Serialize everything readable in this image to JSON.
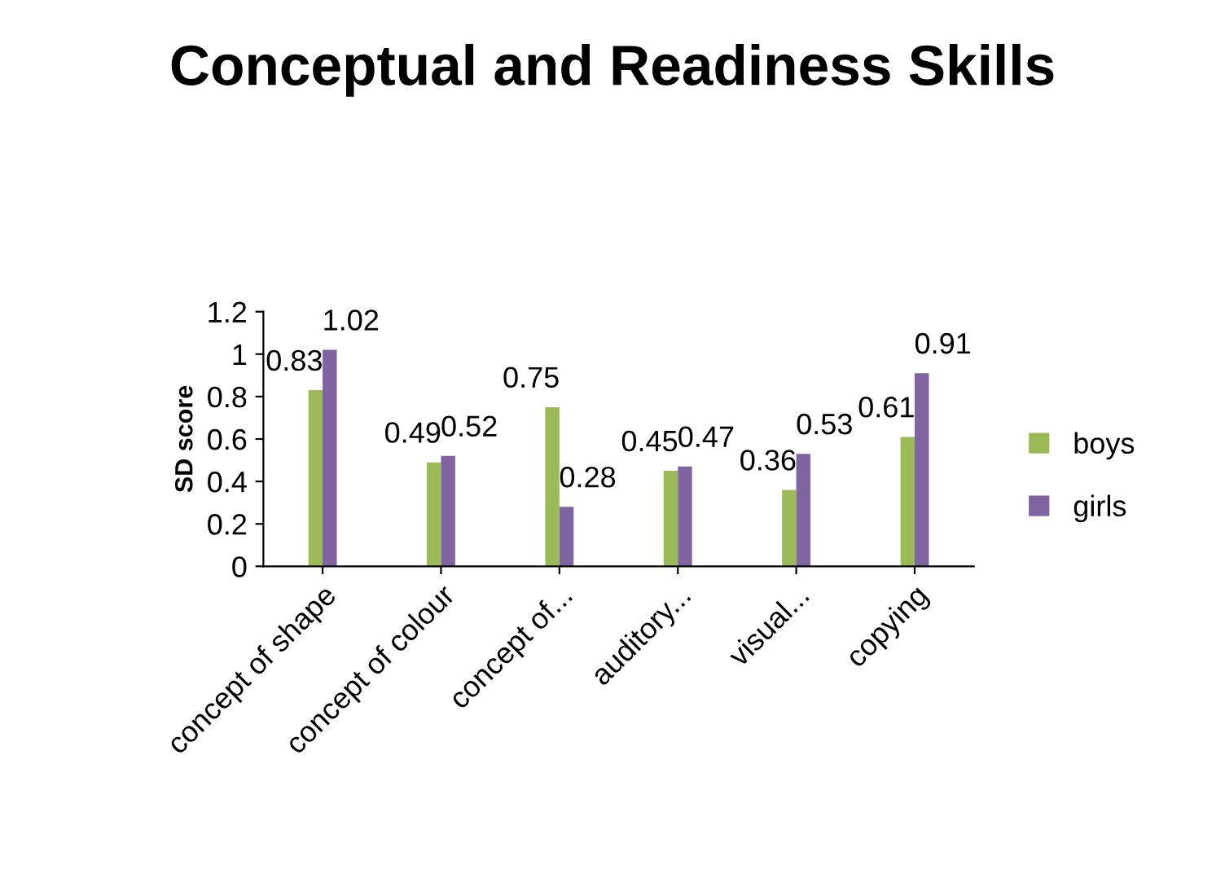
{
  "chart_data": {
    "type": "bar",
    "title": "Conceptual and Readiness Skills",
    "ylabel": "SD score",
    "categories": [
      "concept of shape",
      "concept of colour",
      "concept of...",
      "auditory...",
      "visual...",
      "copying"
    ],
    "series": [
      {
        "name": "boys",
        "color": "#9bbb59",
        "values": [
          0.83,
          0.49,
          0.75,
          0.45,
          0.36,
          0.61
        ]
      },
      {
        "name": "girls",
        "color": "#8064a2",
        "values": [
          1.02,
          0.52,
          0.28,
          0.47,
          0.53,
          0.91
        ]
      }
    ],
    "ylim": [
      0,
      1.2
    ],
    "yticks": [
      0,
      0.2,
      0.4,
      0.6,
      0.8,
      {
        "value": 1,
        "label": "1"
      },
      1.2
    ],
    "data_labels": true,
    "grid": false,
    "legend": "right"
  }
}
